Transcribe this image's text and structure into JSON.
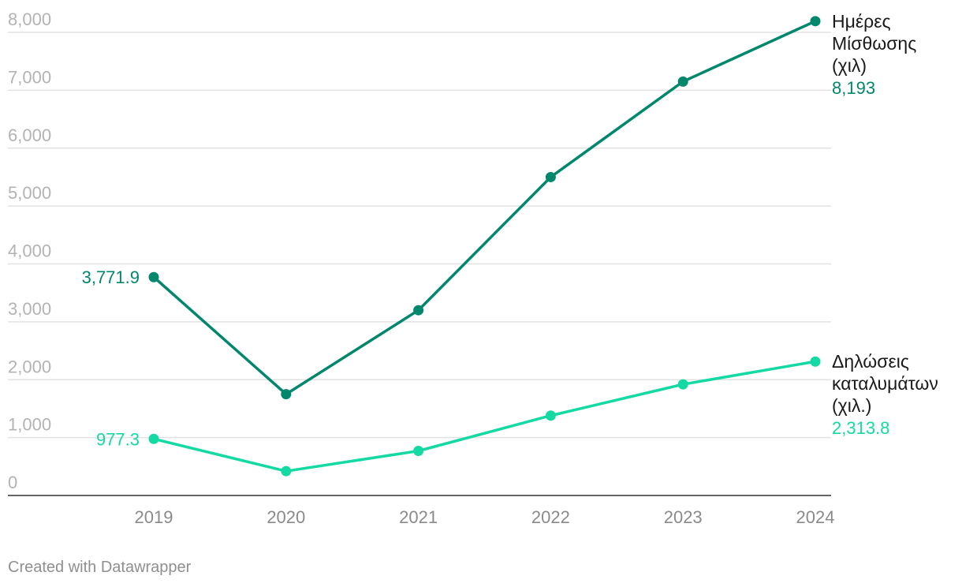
{
  "chart_data": {
    "type": "line",
    "x": [
      "2019",
      "2020",
      "2021",
      "2022",
      "2023",
      "2024"
    ],
    "yticks": [
      "0",
      "1,000",
      "2,000",
      "3,000",
      "4,000",
      "5,000",
      "6,000",
      "7,000",
      "8,000"
    ],
    "ylim": [
      0,
      8000
    ],
    "grid": true,
    "series": [
      {
        "name_lines": [
          "Ημέρες",
          "Μίσθωσης",
          "(χιλ)"
        ],
        "color": "#00876c",
        "values": [
          3771.9,
          1750,
          3200,
          5500,
          7150,
          8193
        ],
        "first_label": "3,771.9",
        "last_label": "8,193"
      },
      {
        "name_lines": [
          "Δηλώσεις",
          "καταλυμάτων",
          "(χιλ.)"
        ],
        "color": "#14d9a3",
        "values": [
          977.3,
          420,
          770,
          1380,
          1920,
          2313.8
        ],
        "first_label": "977.3",
        "last_label": "2,313.8"
      }
    ]
  },
  "footer": {
    "credit": "Created with Datawrapper"
  }
}
